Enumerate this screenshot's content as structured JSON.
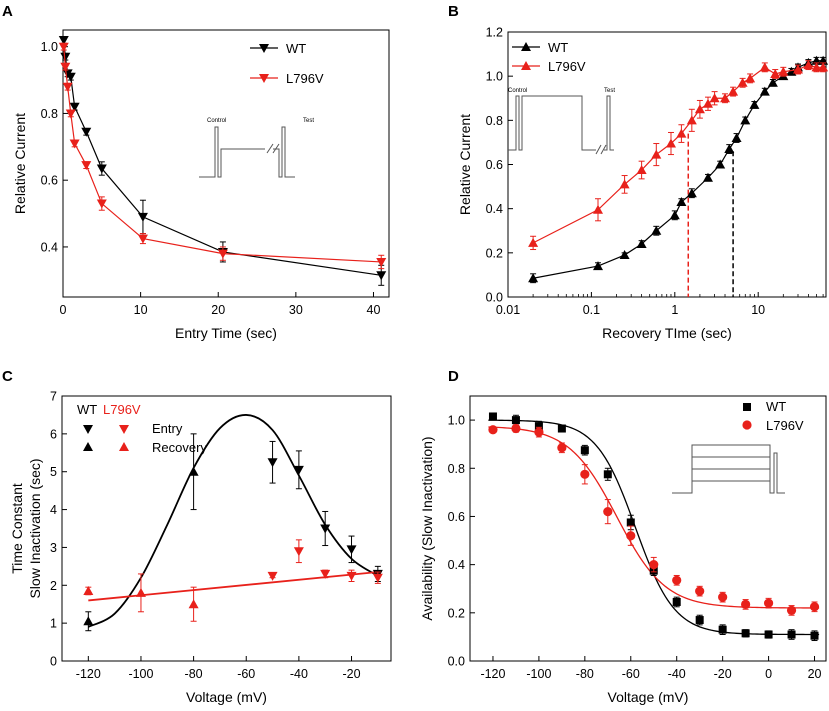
{
  "colors": {
    "wt": "#000000",
    "mut": "#e8211b"
  },
  "chart_data": [
    {
      "panel": "A",
      "type": "line",
      "xlabel": "Entry Time (sec)",
      "ylabel": "Relative Current",
      "xlim": [
        0,
        42
      ],
      "ylim": [
        0.25,
        1.05
      ],
      "xticks": [
        0,
        10,
        20,
        30,
        40
      ],
      "yticks": [
        0.4,
        0.6,
        0.8,
        1.0
      ],
      "ytick_labels": [
        "0.4",
        "0.6",
        "0.8",
        "1.0"
      ],
      "legend": "top-right",
      "inset_labels": [
        "Control",
        "Test"
      ],
      "series": [
        {
          "name": "WT",
          "color": "wt",
          "marker": "tri-down",
          "x": [
            0.1,
            0.3,
            0.6,
            1.0,
            1.5,
            3.0,
            5.0,
            10.3,
            20.6,
            41.0
          ],
          "y": [
            1.02,
            0.97,
            0.92,
            0.91,
            0.82,
            0.745,
            0.635,
            0.49,
            0.385,
            0.315
          ],
          "err": [
            0.01,
            0.01,
            0.01,
            0.01,
            0.01,
            0.01,
            0.02,
            0.05,
            0.03,
            0.03
          ]
        },
        {
          "name": "L796V",
          "color": "mut",
          "marker": "tri-down",
          "x": [
            0.1,
            0.3,
            0.6,
            1.0,
            1.5,
            3.0,
            5.0,
            10.3,
            20.6,
            41.0
          ],
          "y": [
            1.0,
            0.94,
            0.88,
            0.8,
            0.71,
            0.645,
            0.53,
            0.425,
            0.38,
            0.355
          ],
          "err": [
            0.01,
            0.01,
            0.01,
            0.01,
            0.01,
            0.01,
            0.02,
            0.015,
            0.02,
            0.02
          ]
        }
      ]
    },
    {
      "panel": "B",
      "type": "line",
      "xscale": "log",
      "xlabel": "Recovery TIme (sec)",
      "ylabel": "Relative Current",
      "xlim": [
        0.01,
        65
      ],
      "ylim": [
        0,
        1.2
      ],
      "xticks": [
        0.01,
        0.1,
        1,
        10
      ],
      "xtick_labels": [
        "0.01",
        "0.1",
        "1",
        "10"
      ],
      "yticks": [
        0,
        0.2,
        0.4,
        0.6,
        0.8,
        1.0,
        1.2
      ],
      "ytick_labels": [
        "0.0",
        "0.2",
        "0.4",
        "0.6",
        "0.8",
        "1.0",
        "1.2"
      ],
      "legend": "top-left",
      "inset_labels": [
        "Control",
        "Test"
      ],
      "dashed_markers": [
        {
          "x": 1.45,
          "y": 0.74,
          "color": "mut"
        },
        {
          "x": 5.0,
          "y": 0.66,
          "color": "wt"
        }
      ],
      "series": [
        {
          "name": "WT",
          "color": "wt",
          "marker": "tri-up",
          "x": [
            0.02,
            0.12,
            0.25,
            0.4,
            0.6,
            1.0,
            1.2,
            1.6,
            2.5,
            3.5,
            4.5,
            5.5,
            7,
            9,
            12,
            15,
            20,
            25,
            30,
            40,
            50,
            60
          ],
          "y": [
            0.085,
            0.14,
            0.19,
            0.24,
            0.3,
            0.37,
            0.43,
            0.47,
            0.54,
            0.6,
            0.67,
            0.72,
            0.8,
            0.87,
            0.93,
            0.97,
            1.0,
            1.02,
            1.04,
            1.06,
            1.07,
            1.07
          ],
          "err": [
            0.02,
            0.015,
            0.01,
            0.015,
            0.02,
            0.02,
            0.015,
            0.02,
            0.015,
            0.015,
            0.02,
            0.02,
            0.015,
            0.015,
            0.015,
            0.015,
            0.015,
            0.015,
            0.015,
            0.015,
            0.015,
            0.015
          ]
        },
        {
          "name": "L796V",
          "color": "mut",
          "marker": "tri-up",
          "x": [
            0.02,
            0.12,
            0.25,
            0.4,
            0.6,
            0.9,
            1.2,
            1.6,
            2.0,
            2.5,
            3.0,
            4.0,
            5.0,
            6.5,
            8.0,
            12,
            16,
            20,
            30,
            40,
            50,
            60
          ],
          "y": [
            0.245,
            0.395,
            0.51,
            0.575,
            0.645,
            0.695,
            0.74,
            0.8,
            0.85,
            0.875,
            0.9,
            0.9,
            0.93,
            0.97,
            0.99,
            1.04,
            1.01,
            1.02,
            1.03,
            1.05,
            1.04,
            1.04
          ],
          "err": [
            0.03,
            0.05,
            0.04,
            0.04,
            0.05,
            0.05,
            0.04,
            0.05,
            0.04,
            0.03,
            0.03,
            0.02,
            0.02,
            0.02,
            0.02,
            0.02,
            0.02,
            0.02,
            0.02,
            0.02,
            0.02,
            0.02
          ]
        }
      ]
    },
    {
      "panel": "C",
      "type": "scatter",
      "xlabel": "Voltage (mV)",
      "ylabel": [
        "Time Constant",
        "Slow Inactivation (sec)"
      ],
      "xlim": [
        -130,
        -5
      ],
      "ylim": [
        0,
        7
      ],
      "xticks": [
        -120,
        -100,
        -80,
        -60,
        -40,
        -20
      ],
      "yticks": [
        0,
        1,
        2,
        3,
        4,
        5,
        6,
        7
      ],
      "legend": {
        "headers": [
          "WT",
          "L796V"
        ],
        "rows": [
          "Entry",
          "Recovery"
        ]
      },
      "series": [
        {
          "name": "WT Entry",
          "color": "wt",
          "marker": "tri-down",
          "x": [
            -50,
            -40,
            -30,
            -20,
            -10
          ],
          "y": [
            5.25,
            5.05,
            3.5,
            2.95,
            2.3
          ],
          "err": [
            0.55,
            0.5,
            0.45,
            0.35,
            0.2
          ]
        },
        {
          "name": "WT Recovery",
          "color": "wt",
          "marker": "tri-up",
          "x": [
            -120,
            -80
          ],
          "y": [
            1.05,
            5.0
          ],
          "err": [
            0.25,
            1.0
          ]
        },
        {
          "name": "L796V Entry",
          "color": "mut",
          "marker": "tri-down",
          "x": [
            -50,
            -40,
            -30,
            -20,
            -10
          ],
          "y": [
            2.25,
            2.9,
            2.3,
            2.25,
            2.2
          ],
          "err": [
            0.05,
            0.3,
            0.1,
            0.15,
            0.15
          ]
        },
        {
          "name": "L796V Recovery",
          "color": "mut",
          "marker": "tri-up",
          "x": [
            -120,
            -100,
            -80
          ],
          "y": [
            1.85,
            1.8,
            1.5
          ],
          "err": [
            0.1,
            0.5,
            0.45
          ]
        }
      ],
      "fits": [
        {
          "name": "WT fit",
          "color": "wt",
          "x": [
            -120,
            -110,
            -100,
            -90,
            -80,
            -70,
            -60,
            -50,
            -40,
            -30,
            -20,
            -10
          ],
          "y": [
            0.9,
            1.25,
            2.2,
            3.6,
            5.1,
            6.15,
            6.5,
            6.1,
            4.9,
            3.6,
            2.7,
            2.25
          ]
        },
        {
          "name": "L796V fit",
          "color": "mut",
          "x": [
            -120,
            -10
          ],
          "y": [
            1.6,
            2.35
          ]
        }
      ]
    },
    {
      "panel": "D",
      "type": "scatter",
      "xlabel": "Voltage (mV)",
      "ylabel": "Availability (Slow Inactivation)",
      "xlim": [
        -130,
        25
      ],
      "ylim": [
        0,
        1.1
      ],
      "xticks": [
        -120,
        -100,
        -80,
        -60,
        -40,
        -20,
        0,
        20
      ],
      "yticks": [
        0,
        0.2,
        0.4,
        0.6,
        0.8,
        1.0
      ],
      "ytick_labels": [
        "0.0",
        "0.2",
        "0.4",
        "0.6",
        "0.8",
        "1.0"
      ],
      "legend": "top-right",
      "series": [
        {
          "name": "WT",
          "color": "wt",
          "marker": "square",
          "x": [
            -120,
            -110,
            -100,
            -90,
            -80,
            -70,
            -60,
            -50,
            -40,
            -30,
            -20,
            -10,
            0,
            10,
            20
          ],
          "y": [
            1.015,
            1.0,
            0.975,
            0.965,
            0.875,
            0.775,
            0.575,
            0.375,
            0.245,
            0.17,
            0.13,
            0.115,
            0.11,
            0.11,
            0.105
          ],
          "err": [
            0.01,
            0.02,
            0.02,
            0.01,
            0.02,
            0.025,
            0.03,
            0.02,
            0.02,
            0.02,
            0.02,
            0.015,
            0.015,
            0.02,
            0.02
          ]
        },
        {
          "name": "L796V",
          "color": "mut",
          "marker": "circle",
          "x": [
            -120,
            -110,
            -100,
            -90,
            -80,
            -70,
            -60,
            -50,
            -40,
            -30,
            -20,
            -10,
            0,
            10,
            20
          ],
          "y": [
            0.96,
            0.965,
            0.95,
            0.885,
            0.775,
            0.62,
            0.52,
            0.4,
            0.335,
            0.29,
            0.265,
            0.235,
            0.24,
            0.21,
            0.225
          ],
          "err": [
            0.01,
            0.015,
            0.02,
            0.02,
            0.04,
            0.05,
            0.04,
            0.03,
            0.02,
            0.02,
            0.02,
            0.02,
            0.02,
            0.02,
            0.02
          ]
        }
      ],
      "fits": [
        {
          "name": "WT Boltzmann",
          "color": "wt",
          "v_half": -58,
          "k": 8.5,
          "top": 1.0,
          "bottom": 0.11
        },
        {
          "name": "L796V Boltzmann",
          "color": "mut",
          "v_half": -66,
          "k": 10.5,
          "top": 0.975,
          "bottom": 0.22
        }
      ]
    }
  ]
}
